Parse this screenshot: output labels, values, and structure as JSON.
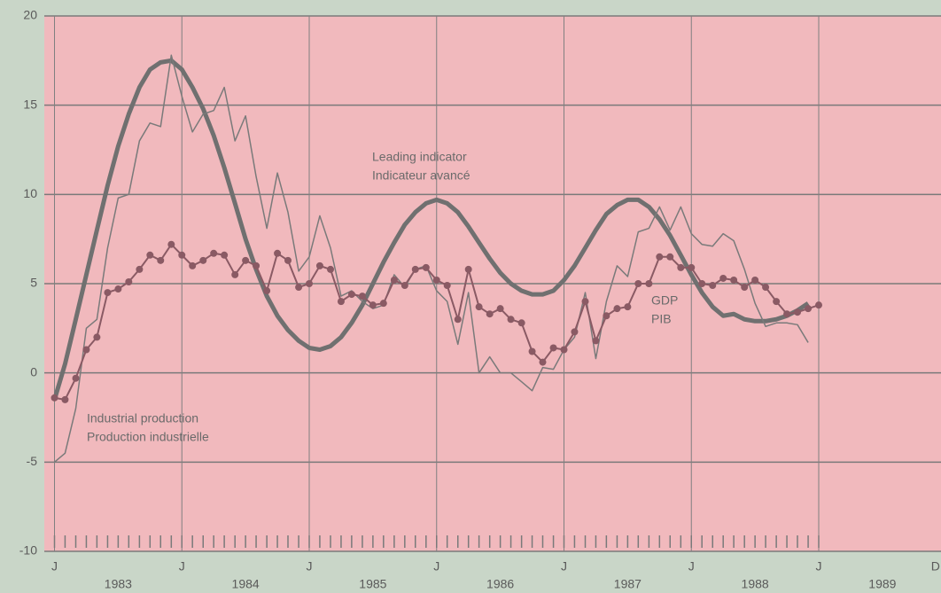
{
  "chart_data": {
    "type": "line",
    "x": [
      1983,
      1983.083,
      1983.167,
      1983.25,
      1983.333,
      1983.417,
      1983.5,
      1983.583,
      1983.667,
      1983.75,
      1983.833,
      1983.917,
      1984,
      1984.083,
      1984.167,
      1984.25,
      1984.333,
      1984.417,
      1984.5,
      1984.583,
      1984.667,
      1984.75,
      1984.833,
      1984.917,
      1985,
      1985.083,
      1985.167,
      1985.25,
      1985.333,
      1985.417,
      1985.5,
      1985.583,
      1985.667,
      1985.75,
      1985.833,
      1985.917,
      1986,
      1986.083,
      1986.167,
      1986.25,
      1986.333,
      1986.417,
      1986.5,
      1986.583,
      1986.667,
      1986.75,
      1986.833,
      1986.917,
      1987,
      1987.083,
      1987.167,
      1987.25,
      1987.333,
      1987.417,
      1987.5,
      1987.583,
      1987.667,
      1987.75,
      1987.833,
      1987.917,
      1988,
      1988.083,
      1988.167,
      1988.25,
      1988.333,
      1988.417,
      1988.5,
      1988.583,
      1988.667,
      1988.75,
      1988.833,
      1988.917,
      1989
    ],
    "series": [
      {
        "name": "Leading indicator",
        "name_fr": "Indicateur avancé",
        "color": "#707070",
        "width": 5,
        "values": [
          -1.5,
          0.5,
          3,
          5.5,
          8,
          10.5,
          12.7,
          14.5,
          16,
          17,
          17.4,
          17.5,
          17,
          16,
          14.8,
          13.3,
          11.5,
          9.5,
          7.5,
          5.8,
          4.3,
          3.2,
          2.4,
          1.8,
          1.4,
          1.3,
          1.5,
          2,
          2.8,
          3.8,
          5,
          6.2,
          7.3,
          8.3,
          9,
          9.5,
          9.7,
          9.5,
          9,
          8.2,
          7.3,
          6.4,
          5.6,
          5,
          4.6,
          4.4,
          4.4,
          4.6,
          5.2,
          6,
          7,
          8,
          8.9,
          9.4,
          9.7,
          9.7,
          9.3,
          8.6,
          7.7,
          6.6,
          5.5,
          4.5,
          3.7,
          3.2,
          3.3,
          3,
          2.9,
          2.9,
          3,
          3.2,
          3.5,
          3.9,
          null
        ]
      },
      {
        "name": "Industrial production",
        "name_fr": "Production industrielle",
        "color": "#7a7a7a",
        "width": 1.5,
        "values": [
          -5,
          -4.5,
          -2,
          2.5,
          3,
          7,
          9.8,
          10,
          13,
          14,
          13.8,
          17.8,
          15.5,
          13.5,
          14.5,
          14.7,
          16,
          13,
          14.4,
          11,
          8.1,
          11.2,
          9,
          5.7,
          6.5,
          8.8,
          7,
          4.3,
          4.6,
          4,
          3.6,
          3.8,
          5.5,
          4.8,
          5.8,
          6,
          4.6,
          4,
          1.6,
          4.5,
          0,
          0.9,
          0,
          0,
          -0.5,
          -1,
          0.3,
          0.2,
          1.3,
          2,
          4.5,
          0.8,
          4,
          6,
          5.4,
          7.9,
          8.1,
          9.3,
          8,
          9.3,
          7.8,
          7.2,
          7.1,
          7.8,
          7.4,
          5.8,
          3.9,
          2.6,
          2.8,
          2.8,
          2.7,
          1.7,
          null
        ]
      },
      {
        "name": "GDP",
        "name_fr": "PIB",
        "color": "#8a5a64",
        "width": 2,
        "markers": true,
        "values": [
          -1.4,
          -1.5,
          -0.3,
          1.3,
          2,
          4.5,
          4.7,
          5.1,
          5.8,
          6.6,
          6.3,
          7.2,
          6.6,
          6,
          6.3,
          6.7,
          6.6,
          5.5,
          6.3,
          6,
          4.6,
          6.7,
          6.3,
          4.8,
          5,
          6,
          5.8,
          4,
          4.4,
          4.3,
          3.8,
          3.9,
          5.2,
          4.9,
          5.8,
          5.9,
          5.2,
          4.9,
          3,
          5.8,
          3.7,
          3.3,
          3.6,
          3,
          2.8,
          1.2,
          0.6,
          1.4,
          1.3,
          2.3,
          4,
          1.8,
          3.2,
          3.6,
          3.7,
          5,
          5,
          6.5,
          6.5,
          5.9,
          5.9,
          5,
          4.9,
          5.3,
          5.2,
          4.8,
          5.2,
          4.8,
          4,
          3.3,
          3.4,
          3.6,
          3.8
        ]
      }
    ],
    "xlim": [
      1982.92,
      1989.96
    ],
    "xticks": [
      {
        "value": 1983,
        "label": "J"
      },
      {
        "value": 1984,
        "label": "J"
      },
      {
        "value": 1985,
        "label": "J"
      },
      {
        "value": 1986,
        "label": "J"
      },
      {
        "value": 1987,
        "label": "J"
      },
      {
        "value": 1988,
        "label": "J"
      },
      {
        "value": 1989,
        "label": "J"
      },
      {
        "value": 1989.917,
        "label": "D"
      }
    ],
    "year_labels": [
      {
        "value": 1983.5,
        "label": "1983"
      },
      {
        "value": 1984.5,
        "label": "1984"
      },
      {
        "value": 1985.5,
        "label": "1985"
      },
      {
        "value": 1986.5,
        "label": "1986"
      },
      {
        "value": 1987.5,
        "label": "1987"
      },
      {
        "value": 1988.5,
        "label": "1988"
      },
      {
        "value": 1989.5,
        "label": "1989"
      }
    ],
    "ylim": [
      -10,
      20
    ],
    "yticks": [
      -10,
      -5,
      0,
      5,
      10,
      15,
      20
    ],
    "grid": true
  }
}
